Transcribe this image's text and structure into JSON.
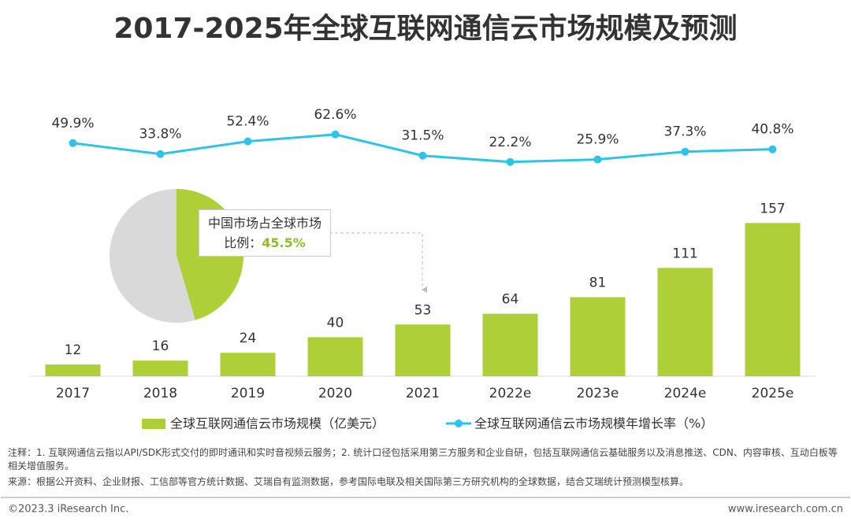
{
  "chart_data": [
    {
      "type": "bar",
      "title": "2017-2025年全球互联网通信云市场规模及预测",
      "categories": [
        "2017",
        "2018",
        "2019",
        "2020",
        "2021",
        "2022e",
        "2023e",
        "2024e",
        "2025e"
      ],
      "series": [
        {
          "name": "全球互联网通信云市场规模（亿美元）",
          "type": "bar",
          "color": "#aecf37",
          "values": [
            12,
            16,
            24,
            40,
            53,
            64,
            81,
            111,
            157
          ]
        },
        {
          "name": "全球互联网通信云市场规模年增长率（%）",
          "type": "line",
          "axis": "y2",
          "color": "#2ec4ea",
          "values": [
            49.9,
            33.8,
            52.4,
            62.6,
            31.5,
            22.2,
            25.9,
            37.3,
            40.8
          ],
          "value_labels": [
            "49.9%",
            "33.8%",
            "52.4%",
            "62.6%",
            "31.5%",
            "22.2%",
            "25.9%",
            "37.3%",
            "40.8%"
          ]
        }
      ],
      "ylim": [
        0,
        200
      ],
      "y2lim": [
        0,
        100
      ]
    },
    {
      "type": "pie",
      "annotation": "中国市场占全球市场比例：",
      "values": [
        45.5,
        54.5
      ],
      "value_labels": [
        "45.5%",
        null
      ],
      "colors": [
        "#aecf37",
        "#d9d9d9"
      ]
    }
  ],
  "notes": [
    "注释：1. 互联网通信云指以API/SDK形式交付的即时通讯和实时音视频云服务；2. 统计口径包括采用第三方服务和企业自研，包括互联网通信云基础服务以及消息推送、CDN、内容审核、互动白板等相关增值服务。",
    "来源：根据公开资料、企业财报、工信部等官方统计数据、艾瑞自有监测数据，参考国际电联及相关国际第三方研究机构的全球数据，结合艾瑞统计预测模型核算。"
  ],
  "footer": {
    "left": "©2023.3 iResearch Inc.",
    "right": "www.iresearch.com.cn"
  }
}
